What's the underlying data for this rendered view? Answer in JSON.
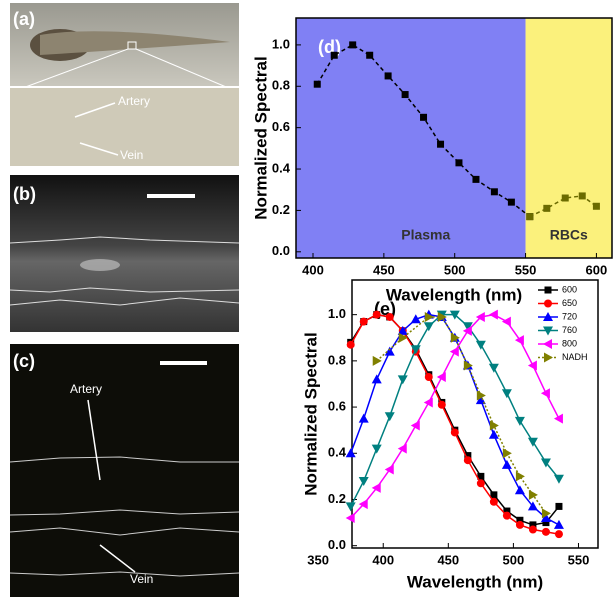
{
  "panels": {
    "a": {
      "label": "(a)",
      "artery": "Artery",
      "vein": "Vein"
    },
    "b": {
      "label": "(b)"
    },
    "c": {
      "label": "(c)",
      "artery": "Artery",
      "vein": "Vein"
    }
  },
  "chart_data": [
    {
      "type": "line",
      "panel_label": "(d)",
      "xlabel": "Wavelength (nm)",
      "ylabel": "Normalized Spectral",
      "xlim": [
        388,
        611
      ],
      "ylim": [
        -0.03,
        1.13
      ],
      "xticks": [
        400,
        450,
        500,
        550,
        600
      ],
      "yticks": [
        {
          "value": 0,
          "label": "0.0"
        },
        0.2,
        0.4,
        0.6,
        0.8,
        {
          "value": 1,
          "label": "1.0"
        }
      ],
      "regions": [
        {
          "label": "Plasma",
          "color": "#8080f4",
          "range": [
            388,
            550
          ]
        },
        {
          "label": "RBCs",
          "color": "#fbf17c",
          "range": [
            550,
            611
          ]
        }
      ],
      "series": [
        {
          "color": "#000000",
          "marker": "square",
          "linestyle": "dashed",
          "x": [
            403,
            415,
            428,
            440,
            453,
            465,
            478,
            490,
            503,
            515,
            528,
            540,
            553
          ],
          "values": [
            0.81,
            0.95,
            1.0,
            0.95,
            0.85,
            0.76,
            0.65,
            0.52,
            0.43,
            0.35,
            0.29,
            0.24,
            0.17
          ]
        },
        {
          "color": "#6b6b00",
          "marker": "square",
          "linestyle": "dashed",
          "x": [
            553,
            565,
            578,
            590,
            600
          ],
          "values": [
            0.17,
            0.21,
            0.26,
            0.27,
            0.22
          ]
        }
      ]
    },
    {
      "type": "line",
      "panel_label": "(e)",
      "xlabel": "Wavelength (nm)",
      "ylabel": "Normalized Spectral",
      "xlim": [
        376,
        565
      ],
      "ylim": [
        -0.01,
        1.15
      ],
      "xticks": [
        350,
        400,
        450,
        500,
        550
      ],
      "yticks": [
        {
          "value": 0,
          "label": "0.0"
        },
        0.2,
        0.4,
        0.6,
        0.8,
        {
          "value": 1,
          "label": "1.0"
        }
      ],
      "legend": "upper right",
      "series": [
        {
          "name": "600",
          "color": "#000000",
          "marker": "square",
          "linestyle": "solid",
          "x": [
            375,
            385,
            395,
            405,
            415,
            425,
            435,
            445,
            455,
            465,
            475,
            485,
            495,
            505,
            515,
            525,
            535
          ],
          "values": [
            0.88,
            0.97,
            1.0,
            0.99,
            0.93,
            0.85,
            0.74,
            0.62,
            0.5,
            0.39,
            0.3,
            0.22,
            0.15,
            0.11,
            0.09,
            0.1,
            0.17
          ]
        },
        {
          "name": "650",
          "color": "#ff0000",
          "marker": "circle",
          "linestyle": "solid",
          "x": [
            375,
            385,
            395,
            405,
            415,
            425,
            435,
            445,
            455,
            465,
            475,
            485,
            495,
            505,
            515,
            525,
            535
          ],
          "values": [
            0.87,
            0.97,
            1.0,
            0.99,
            0.93,
            0.84,
            0.73,
            0.61,
            0.49,
            0.37,
            0.27,
            0.19,
            0.13,
            0.09,
            0.07,
            0.06,
            0.05
          ]
        },
        {
          "name": "720",
          "color": "#0000ff",
          "marker": "triangle-up",
          "linestyle": "solid",
          "x": [
            375,
            385,
            395,
            405,
            415,
            425,
            435,
            445,
            455,
            465,
            475,
            485,
            495,
            505,
            515,
            525,
            535
          ],
          "values": [
            0.4,
            0.55,
            0.72,
            0.84,
            0.93,
            0.98,
            1.0,
            0.99,
            0.9,
            0.78,
            0.63,
            0.48,
            0.35,
            0.24,
            0.17,
            0.12,
            0.09
          ]
        },
        {
          "name": "760",
          "color": "#008080",
          "marker": "triangle-down",
          "linestyle": "solid",
          "x": [
            375,
            385,
            395,
            405,
            415,
            425,
            435,
            445,
            455,
            465,
            475,
            485,
            495,
            505,
            515,
            525,
            535
          ],
          "values": [
            0.17,
            0.28,
            0.42,
            0.56,
            0.72,
            0.85,
            0.95,
            1.0,
            1.0,
            0.95,
            0.87,
            0.77,
            0.66,
            0.54,
            0.45,
            0.36,
            0.29
          ]
        },
        {
          "name": "800",
          "color": "#ff00ff",
          "marker": "triangle-left",
          "linestyle": "solid",
          "x": [
            375,
            385,
            395,
            405,
            415,
            425,
            435,
            445,
            455,
            465,
            475,
            485,
            495,
            505,
            515,
            525,
            535
          ],
          "values": [
            0.12,
            0.18,
            0.25,
            0.33,
            0.42,
            0.52,
            0.62,
            0.73,
            0.84,
            0.93,
            0.99,
            1.0,
            0.97,
            0.89,
            0.78,
            0.66,
            0.55
          ]
        },
        {
          "name": "NADH",
          "color": "#808000",
          "marker": "triangle-right",
          "linestyle": "dotted",
          "x": [
            395,
            415,
            435,
            445,
            455,
            465,
            475,
            485,
            495,
            505,
            515,
            525
          ],
          "values": [
            0.8,
            0.9,
            0.99,
            0.99,
            0.9,
            0.78,
            0.65,
            0.52,
            0.4,
            0.3,
            0.22,
            0.14
          ]
        }
      ]
    }
  ]
}
